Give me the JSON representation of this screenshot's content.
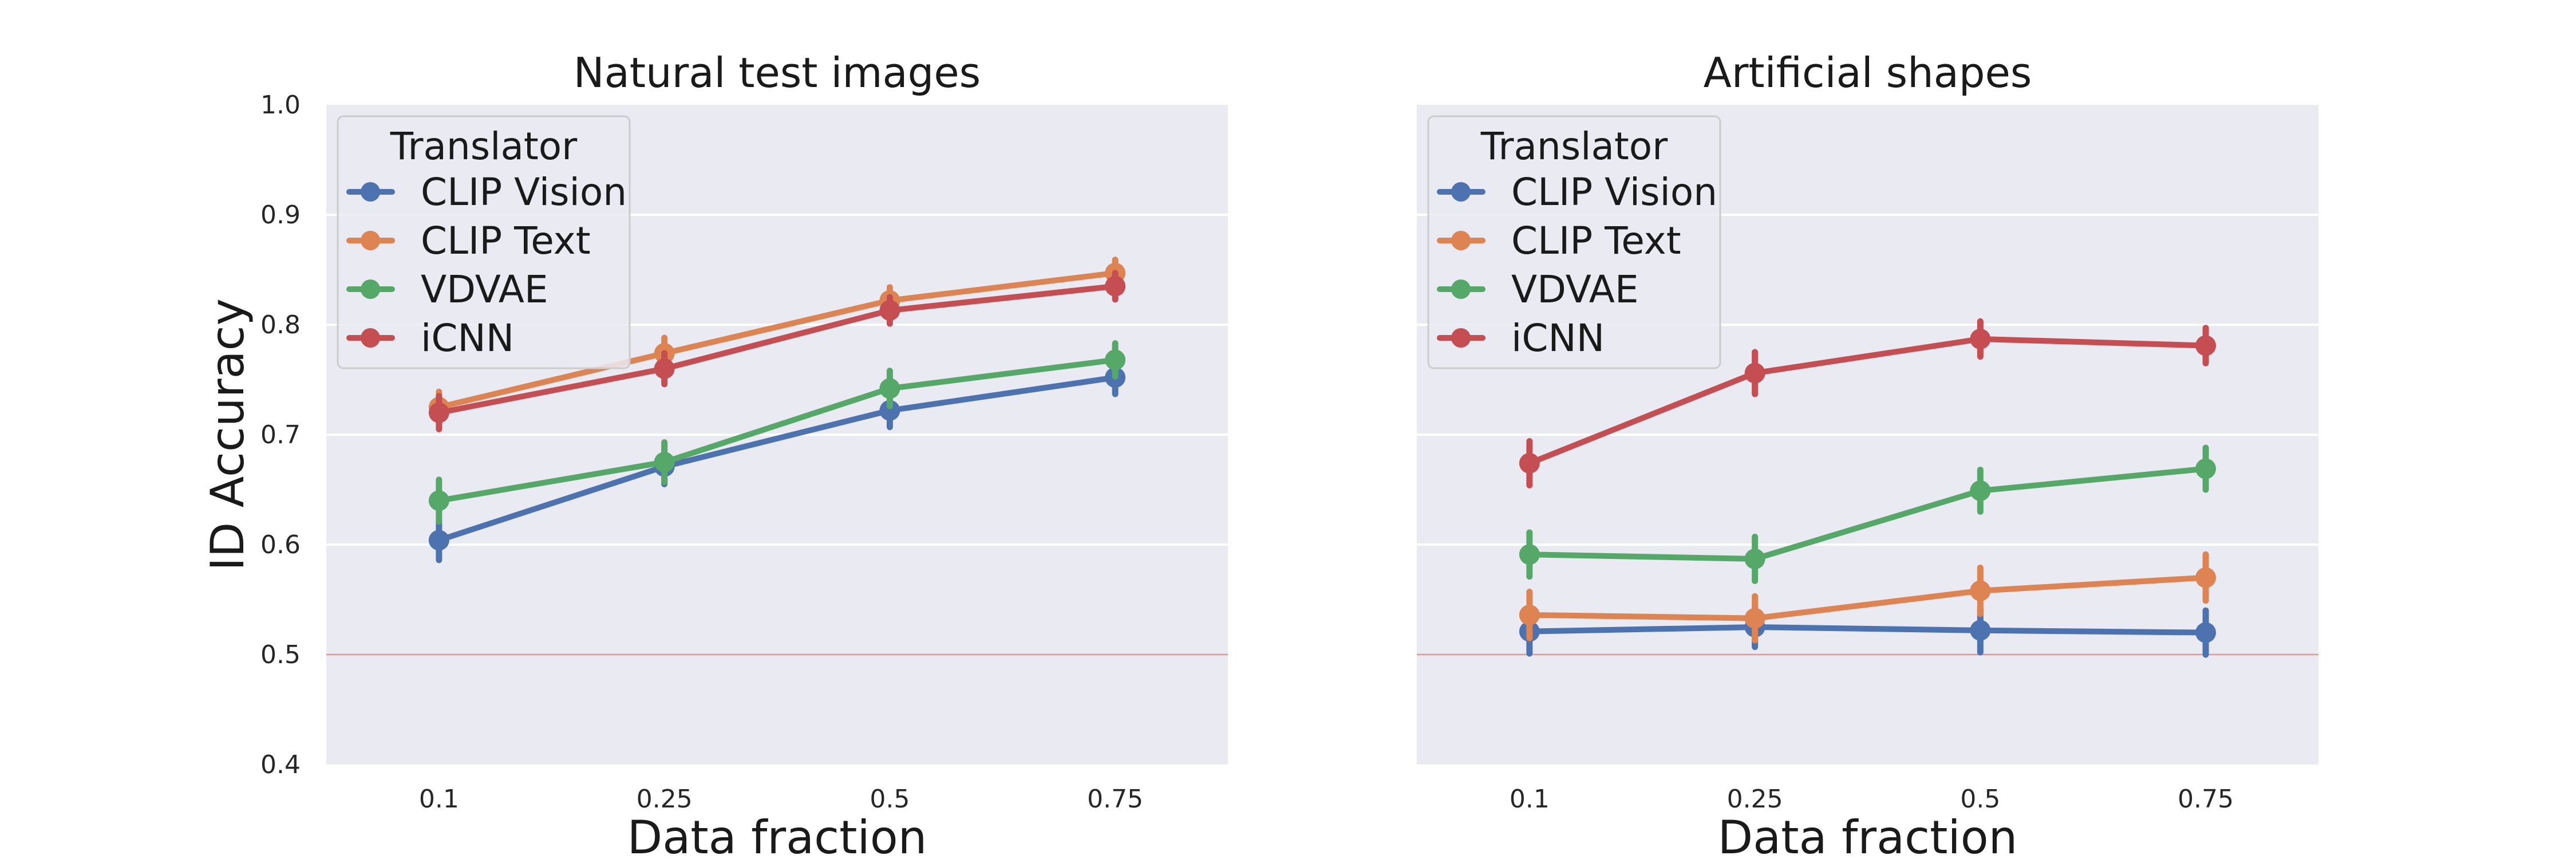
{
  "chart_data": [
    {
      "type": "line",
      "title": "Natural test images",
      "xlabel": "Data fraction",
      "ylabel": "ID Accuracy",
      "categories": [
        "0.1",
        "0.25",
        "0.5",
        "0.75"
      ],
      "ylim": [
        0.4,
        1.0
      ],
      "yticks": [
        "0.4",
        "0.5",
        "0.6",
        "0.7",
        "0.8",
        "0.9",
        "1.0"
      ],
      "reference_line": 0.5,
      "grid": true,
      "legend": {
        "title": "Translator",
        "position": "upper-left"
      },
      "series": [
        {
          "name": "CLIP Vision",
          "color": "#4c72b0",
          "values": [
            0.604,
            0.671,
            0.722,
            0.752
          ],
          "err": [
            0.018,
            0.016,
            0.015,
            0.015
          ]
        },
        {
          "name": "CLIP Text",
          "color": "#dd8452",
          "values": [
            0.725,
            0.774,
            0.822,
            0.847
          ],
          "err": [
            0.014,
            0.014,
            0.012,
            0.012
          ]
        },
        {
          "name": "VDVAE",
          "color": "#55a868",
          "values": [
            0.64,
            0.675,
            0.742,
            0.768
          ],
          "err": [
            0.019,
            0.018,
            0.016,
            0.015
          ]
        },
        {
          "name": "iCNN",
          "color": "#c44e52",
          "values": [
            0.72,
            0.76,
            0.813,
            0.835
          ],
          "err": [
            0.015,
            0.014,
            0.012,
            0.012
          ]
        }
      ]
    },
    {
      "type": "line",
      "title": "Artificial shapes",
      "xlabel": "Data fraction",
      "ylabel": "",
      "categories": [
        "0.1",
        "0.25",
        "0.5",
        "0.75"
      ],
      "ylim": [
        0.4,
        1.0
      ],
      "yticks": [],
      "reference_line": 0.5,
      "grid": true,
      "legend": {
        "title": "Translator",
        "position": "upper-left"
      },
      "series": [
        {
          "name": "CLIP Vision",
          "color": "#4c72b0",
          "values": [
            0.521,
            0.525,
            0.522,
            0.52
          ],
          "err": [
            0.02,
            0.018,
            0.02,
            0.02
          ]
        },
        {
          "name": "CLIP Text",
          "color": "#dd8452",
          "values": [
            0.536,
            0.533,
            0.558,
            0.57
          ],
          "err": [
            0.021,
            0.02,
            0.021,
            0.021
          ]
        },
        {
          "name": "VDVAE",
          "color": "#55a868",
          "values": [
            0.591,
            0.587,
            0.649,
            0.669
          ],
          "err": [
            0.02,
            0.02,
            0.019,
            0.019
          ]
        },
        {
          "name": "iCNN",
          "color": "#c44e52",
          "values": [
            0.674,
            0.756,
            0.787,
            0.781
          ],
          "err": [
            0.02,
            0.019,
            0.016,
            0.016
          ]
        }
      ]
    }
  ]
}
